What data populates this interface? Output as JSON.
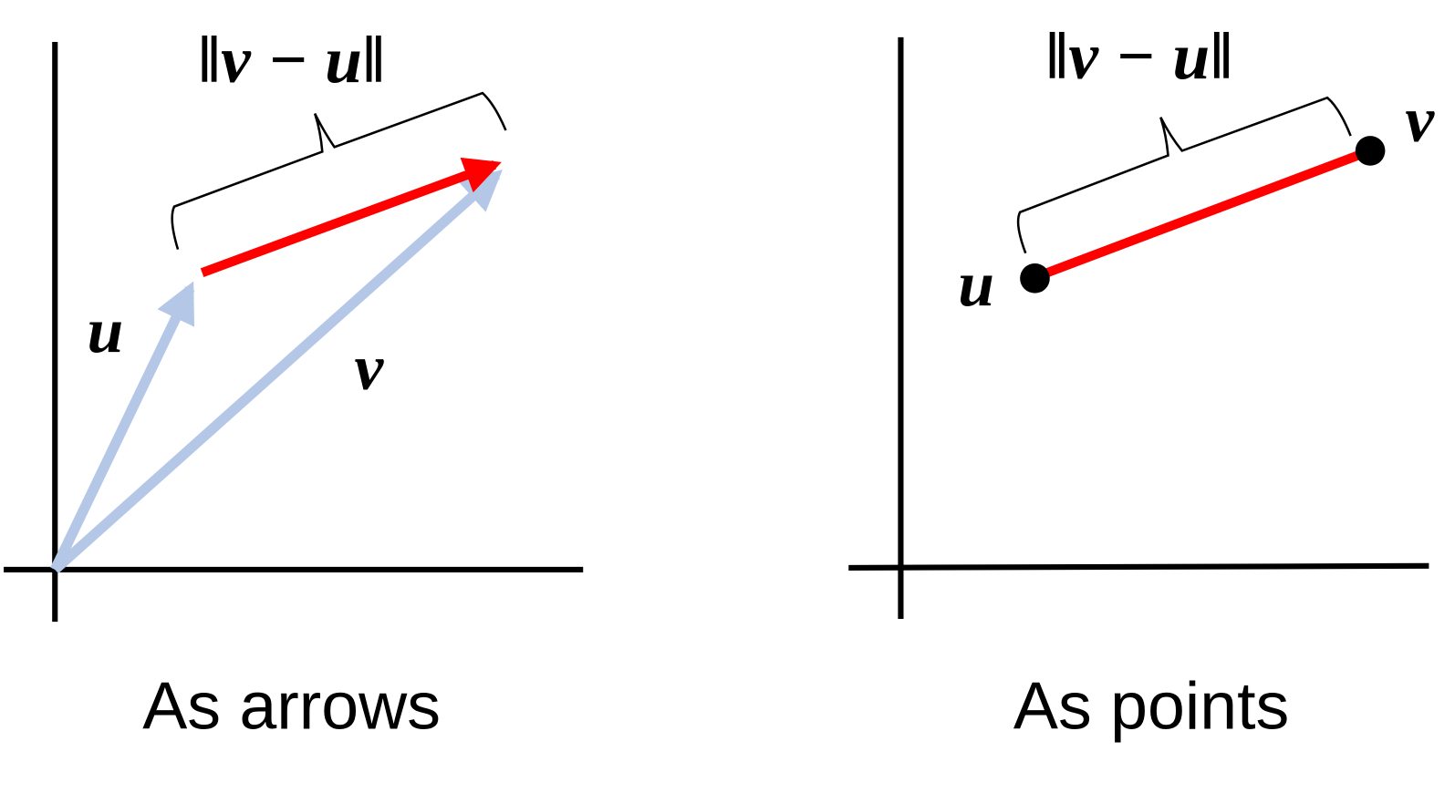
{
  "panels": [
    {
      "norm_label": "‖v − u‖",
      "u_label": "u",
      "v_label": "v",
      "caption": "As arrows"
    },
    {
      "norm_label": "‖v − u‖",
      "u_label": "u",
      "v_label": "v",
      "caption": "As points"
    }
  ]
}
